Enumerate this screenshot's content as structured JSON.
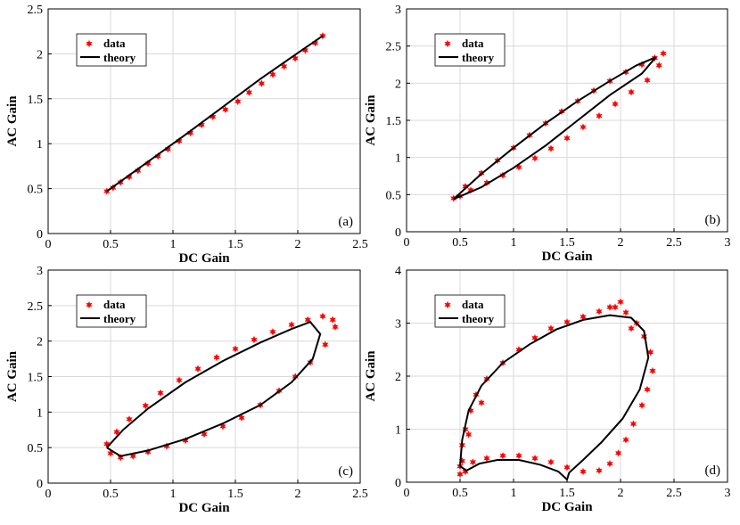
{
  "figure": {
    "background": "#ffffff",
    "data_color": "#ff0000",
    "theory_color": "#000000",
    "grid_color": "#d9d9d9"
  },
  "chart_data": [
    {
      "type": "scatter",
      "panel_label": "(a)",
      "xlabel": "DC Gain",
      "ylabel": "AC Gain",
      "xlim": [
        0,
        2.5
      ],
      "ylim": [
        0,
        2.5
      ],
      "xticks": [
        0,
        0.5,
        1,
        1.5,
        2,
        2.5
      ],
      "yticks": [
        0,
        0.5,
        1,
        1.5,
        2,
        2.5
      ],
      "xtick_labels": [
        "0",
        "0.5",
        "1",
        "1.5",
        "2",
        "2.5"
      ],
      "ytick_labels": [
        "0",
        "0.5",
        "1",
        "1.5",
        "2",
        "2.5"
      ],
      "grid": true,
      "legend": {
        "placement": "top-left",
        "entries": [
          "data",
          "theory"
        ]
      },
      "series": [
        {
          "name": "data",
          "kind": "markers",
          "x": [
            0.47,
            0.52,
            0.58,
            0.65,
            0.72,
            0.8,
            0.88,
            0.96,
            1.05,
            1.14,
            1.23,
            1.32,
            1.42,
            1.52,
            1.61,
            1.71,
            1.8,
            1.89,
            1.98,
            2.06,
            2.14,
            2.2
          ],
          "y": [
            0.47,
            0.51,
            0.57,
            0.63,
            0.7,
            0.78,
            0.86,
            0.94,
            1.03,
            1.12,
            1.21,
            1.3,
            1.38,
            1.47,
            1.57,
            1.67,
            1.77,
            1.86,
            1.95,
            2.04,
            2.12,
            2.2
          ]
        },
        {
          "name": "theory",
          "kind": "line",
          "x": [
            0.47,
            0.8,
            1.1,
            1.4,
            1.7,
            2.0,
            2.2
          ],
          "y": [
            0.47,
            0.8,
            1.1,
            1.41,
            1.72,
            2.01,
            2.2
          ]
        }
      ]
    },
    {
      "type": "scatter",
      "panel_label": "(b)",
      "xlabel": "DC Gain",
      "ylabel": "AC Gain",
      "xlim": [
        0,
        3
      ],
      "ylim": [
        0,
        3
      ],
      "xticks": [
        0,
        0.5,
        1,
        1.5,
        2,
        2.5,
        3
      ],
      "yticks": [
        0,
        0.5,
        1,
        1.5,
        2,
        2.5,
        3
      ],
      "xtick_labels": [
        "0",
        "0.5",
        "1",
        "1.5",
        "2",
        "2.5",
        "3"
      ],
      "ytick_labels": [
        "0",
        "0.5",
        "1",
        "1.5",
        "2",
        "2.5",
        "3"
      ],
      "grid": true,
      "legend": {
        "placement": "top-left",
        "entries": [
          "data",
          "theory"
        ]
      },
      "series": [
        {
          "name": "data",
          "kind": "markers",
          "x": [
            0.44,
            0.55,
            0.7,
            0.85,
            1.0,
            1.15,
            1.3,
            1.45,
            1.6,
            1.75,
            1.9,
            2.05,
            2.2,
            2.32,
            2.4,
            2.36,
            2.25,
            2.1,
            1.95,
            1.8,
            1.65,
            1.5,
            1.35,
            1.2,
            1.05,
            0.9,
            0.75,
            0.6,
            0.5
          ],
          "y": [
            0.45,
            0.61,
            0.79,
            0.96,
            1.13,
            1.3,
            1.46,
            1.62,
            1.76,
            1.9,
            2.03,
            2.15,
            2.25,
            2.34,
            2.4,
            2.24,
            2.04,
            1.88,
            1.72,
            1.56,
            1.41,
            1.26,
            1.12,
            0.99,
            0.87,
            0.76,
            0.66,
            0.56,
            0.48
          ]
        },
        {
          "name": "theory",
          "kind": "line",
          "x": [
            0.44,
            0.7,
            1.0,
            1.3,
            1.6,
            1.9,
            2.15,
            2.33,
            2.2,
            1.9,
            1.6,
            1.3,
            1.0,
            0.7,
            0.44
          ],
          "y": [
            0.44,
            0.78,
            1.13,
            1.46,
            1.76,
            2.03,
            2.24,
            2.35,
            2.13,
            1.84,
            1.5,
            1.16,
            0.86,
            0.6,
            0.44
          ]
        }
      ]
    },
    {
      "type": "scatter",
      "panel_label": "(c)",
      "xlabel": "DC Gain",
      "ylabel": "AC Gain",
      "xlim": [
        0,
        2.5
      ],
      "ylim": [
        0,
        3
      ],
      "xticks": [
        0,
        0.5,
        1,
        1.5,
        2,
        2.5
      ],
      "yticks": [
        0,
        0.5,
        1,
        1.5,
        2,
        2.5,
        3
      ],
      "xtick_labels": [
        "0",
        "0.5",
        "1",
        "1.5",
        "2",
        "2.5"
      ],
      "ytick_labels": [
        "0",
        "0.5",
        "1",
        "1.5",
        "2",
        "2.5",
        "3"
      ],
      "grid": true,
      "legend": {
        "placement": "top-left",
        "entries": [
          "data",
          "theory"
        ]
      },
      "series": [
        {
          "name": "data",
          "kind": "markers",
          "x": [
            0.47,
            0.55,
            0.65,
            0.78,
            0.9,
            1.05,
            1.2,
            1.35,
            1.5,
            1.65,
            1.8,
            1.95,
            2.08,
            2.2,
            2.28,
            2.3,
            2.22,
            2.1,
            1.98,
            1.85,
            1.7,
            1.55,
            1.4,
            1.25,
            1.1,
            0.95,
            0.8,
            0.68,
            0.58,
            0.5
          ],
          "y": [
            0.55,
            0.72,
            0.9,
            1.09,
            1.27,
            1.45,
            1.61,
            1.77,
            1.89,
            2.02,
            2.13,
            2.23,
            2.3,
            2.35,
            2.3,
            2.2,
            1.95,
            1.7,
            1.5,
            1.3,
            1.1,
            0.92,
            0.8,
            0.69,
            0.6,
            0.52,
            0.44,
            0.38,
            0.36,
            0.42
          ]
        },
        {
          "name": "theory",
          "kind": "line",
          "x": [
            0.47,
            0.6,
            0.8,
            1.1,
            1.4,
            1.7,
            1.95,
            2.1,
            2.18,
            2.12,
            1.95,
            1.7,
            1.4,
            1.1,
            0.8,
            0.58,
            0.47
          ],
          "y": [
            0.5,
            0.75,
            1.05,
            1.42,
            1.72,
            1.98,
            2.17,
            2.27,
            2.1,
            1.75,
            1.42,
            1.1,
            0.84,
            0.62,
            0.46,
            0.38,
            0.5
          ]
        }
      ]
    },
    {
      "type": "scatter",
      "panel_label": "(d)",
      "xlabel": "DC Gain",
      "ylabel": "AC Gain",
      "xlim": [
        0,
        3
      ],
      "ylim": [
        0,
        4
      ],
      "xticks": [
        0,
        0.5,
        1,
        1.5,
        2,
        2.5,
        3
      ],
      "yticks": [
        0,
        1,
        2,
        3,
        4
      ],
      "xtick_labels": [
        "0",
        "0.5",
        "1",
        "1.5",
        "2",
        "2.5",
        "3"
      ],
      "ytick_labels": [
        "0",
        "1",
        "2",
        "3",
        "4"
      ],
      "grid": true,
      "legend": {
        "placement": "top-left",
        "entries": [
          "data",
          "theory"
        ]
      },
      "series": [
        {
          "name": "data",
          "kind": "markers",
          "x": [
            0.5,
            0.52,
            0.55,
            0.6,
            0.65,
            0.75,
            0.9,
            1.05,
            1.2,
            1.35,
            1.5,
            1.65,
            1.8,
            1.95,
            2.05,
            2.15,
            2.22,
            2.28,
            2.3,
            2.25,
            2.2,
            2.12,
            2.05,
            1.98,
            1.9,
            1.8,
            1.65,
            1.5,
            1.35,
            1.2,
            1.05,
            0.9,
            0.75,
            0.62,
            0.55,
            0.5,
            0.52,
            0.58,
            0.7,
            2.0,
            1.9,
            2.1
          ],
          "y": [
            0.3,
            0.7,
            1.0,
            1.35,
            1.65,
            1.95,
            2.25,
            2.5,
            2.72,
            2.9,
            3.02,
            3.12,
            3.22,
            3.3,
            3.2,
            3.0,
            2.75,
            2.45,
            2.1,
            1.75,
            1.45,
            1.1,
            0.8,
            0.55,
            0.35,
            0.22,
            0.2,
            0.28,
            0.38,
            0.45,
            0.5,
            0.5,
            0.45,
            0.38,
            0.2,
            0.15,
            0.4,
            0.9,
            1.5,
            3.4,
            3.3,
            2.9
          ]
        },
        {
          "name": "theory",
          "kind": "line",
          "x": [
            0.5,
            0.52,
            0.58,
            0.7,
            0.9,
            1.15,
            1.4,
            1.65,
            1.9,
            2.1,
            2.22,
            2.26,
            2.18,
            2.02,
            1.82,
            1.65,
            1.52,
            1.5,
            1.42,
            1.25,
            1.05,
            0.85,
            0.68,
            0.56,
            0.5
          ],
          "y": [
            0.3,
            0.8,
            1.35,
            1.82,
            2.25,
            2.6,
            2.88,
            3.06,
            3.15,
            3.1,
            2.85,
            2.35,
            1.75,
            1.2,
            0.75,
            0.42,
            0.18,
            0.05,
            0.2,
            0.33,
            0.42,
            0.42,
            0.35,
            0.22,
            0.3
          ]
        }
      ]
    }
  ]
}
